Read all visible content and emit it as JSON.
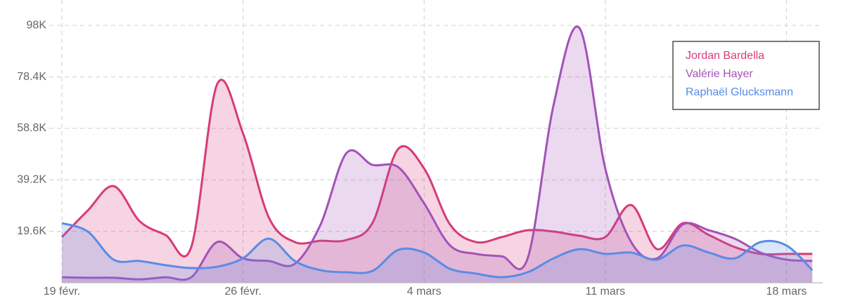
{
  "chart_data": {
    "type": "area",
    "categories": [
      "19 févr.",
      null,
      null,
      null,
      null,
      null,
      null,
      "26 févr.",
      null,
      null,
      null,
      null,
      null,
      null,
      "4 mars",
      null,
      null,
      null,
      null,
      null,
      null,
      "11 mars",
      null,
      null,
      null,
      null,
      null,
      null,
      "18 mars",
      null
    ],
    "series": [
      {
        "name": "Jordan Bardella",
        "color": "#d63b78",
        "values": [
          17400,
          27500,
          36800,
          23500,
          18200,
          13600,
          75600,
          56900,
          24800,
          15500,
          16000,
          16300,
          22700,
          51000,
          43500,
          22200,
          15500,
          17400,
          20000,
          19500,
          17900,
          17400,
          29600,
          12800,
          22700,
          18200,
          13600,
          11000,
          11000,
          11000
        ]
      },
      {
        "name": "Valérie Hayer",
        "color": "#a352b8",
        "values": [
          2100,
          1900,
          1900,
          1300,
          2100,
          2100,
          15500,
          9300,
          8300,
          7200,
          22200,
          49400,
          44900,
          44000,
          30200,
          14200,
          11000,
          10100,
          9300,
          67600,
          97000,
          43500,
          15500,
          9300,
          22200,
          20000,
          16800,
          11500,
          8800,
          8300
        ]
      },
      {
        "name": "Raphaël Glucksmann",
        "color": "#5a8be6",
        "values": [
          22700,
          19500,
          8800,
          8300,
          6700,
          5600,
          6100,
          9300,
          16800,
          8300,
          4800,
          4000,
          4500,
          12500,
          11500,
          5300,
          3500,
          2100,
          4000,
          9300,
          12800,
          11000,
          11500,
          8800,
          14200,
          11500,
          9300,
          15500,
          14200,
          4800
        ]
      }
    ],
    "ylim": [
      0,
      105000
    ],
    "yticks": [
      {
        "value": 19600,
        "label": "19.6K"
      },
      {
        "value": 39200,
        "label": "39.2K"
      },
      {
        "value": 58800,
        "label": "58.8K"
      },
      {
        "value": 78400,
        "label": "78.4K"
      },
      {
        "value": 98000,
        "label": "98K"
      }
    ],
    "grid": true,
    "legend": "top-right"
  }
}
